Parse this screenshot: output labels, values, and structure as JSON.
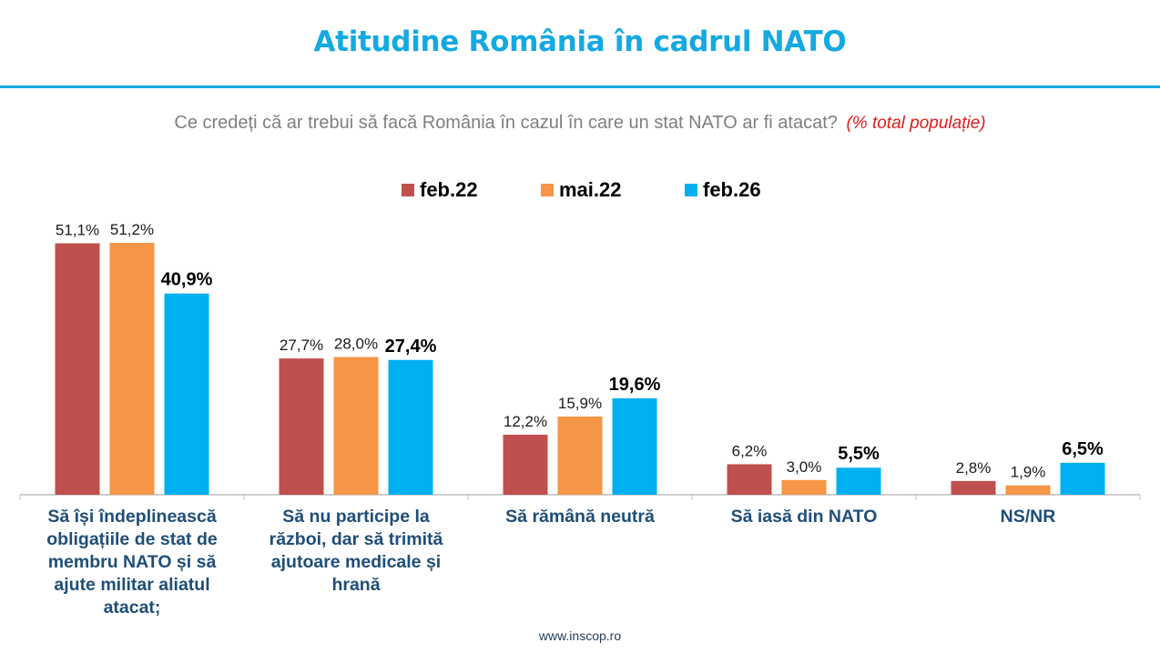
{
  "header": {
    "title": "Atitudine România în cadrul NATO",
    "subtitle": "Ce credeți că ar trebui să facă România în cazul în care un stat NATO ar fi atacat?",
    "subtitle_note": "(% total populație)"
  },
  "colors": {
    "title": "#14a9e1",
    "feb22": "#c0504d",
    "mai22": "#f79646",
    "feb26": "#00b0f0",
    "category_label": "#1f4e79",
    "note": "#e01b1b"
  },
  "legend": [
    {
      "label": "feb.22",
      "color": "#c0504d"
    },
    {
      "label": "mai.22",
      "color": "#f79646"
    },
    {
      "label": "feb.26",
      "color": "#00b0f0"
    }
  ],
  "chart_data": {
    "type": "bar",
    "title": "Atitudine România în cadrul NATO",
    "subtitle": "Ce credeți că ar trebui să facă România în cazul în care un stat NATO ar fi atacat? (% total populație)",
    "xlabel": "",
    "ylabel": "",
    "ylim": [
      0,
      55
    ],
    "grid": false,
    "legend_position": "top-center",
    "categories": [
      "Să își îndeplinească obligațiile de stat de membru NATO și să ajute militar aliatul atacat;",
      "Să nu participe la război, dar să trimită ajutoare medicale și hrană",
      "Să rămână neutră",
      "Să iasă din NATO",
      "NS/NR"
    ],
    "category_lines": [
      [
        "Să își îndeplinească",
        "obligațiile de stat de",
        "membru NATO și să",
        "ajute militar aliatul",
        "atacat;"
      ],
      [
        "Să nu participe la",
        "război, dar să trimită",
        "ajutoare medicale și",
        "hrană"
      ],
      [
        "Să rămână neutră"
      ],
      [
        "Să iasă din NATO"
      ],
      [
        "NS/NR"
      ]
    ],
    "series": [
      {
        "name": "feb.22",
        "color": "#c0504d",
        "values": [
          51.1,
          27.7,
          12.2,
          6.2,
          2.8
        ],
        "labels": [
          "51,1%",
          "27,7%",
          "12,2%",
          "6,2%",
          "2,8%"
        ],
        "label_bold": false
      },
      {
        "name": "mai.22",
        "color": "#f79646",
        "values": [
          51.2,
          28.0,
          15.9,
          3.0,
          1.9
        ],
        "labels": [
          "51,2%",
          "28,0%",
          "15,9%",
          "3,0%",
          "1,9%"
        ],
        "label_bold": false
      },
      {
        "name": "feb.26",
        "color": "#00b0f0",
        "values": [
          40.9,
          27.4,
          19.6,
          5.5,
          6.5
        ],
        "labels": [
          "40,9%",
          "27,4%",
          "19,6%",
          "5,5%",
          "6,5%"
        ],
        "label_bold": true
      }
    ]
  },
  "footer": {
    "website": "www.inscop.ro"
  }
}
